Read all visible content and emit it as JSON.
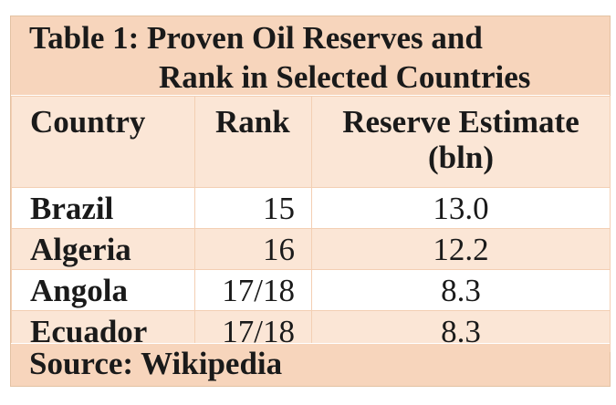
{
  "title": {
    "line1": "Table 1: Proven Oil Reserves and",
    "line2": "Rank in Selected Countries"
  },
  "table": {
    "headers": {
      "country": "Country",
      "rank": "Rank",
      "reserve_line1": "Reserve Estimate",
      "reserve_line2": "(bln)"
    },
    "rows": [
      {
        "country": "Brazil",
        "rank": "15",
        "reserve": "13.0"
      },
      {
        "country": "Algeria",
        "rank": "16",
        "reserve": "12.2"
      },
      {
        "country": "Angola",
        "rank": "17/18",
        "reserve": "8.3"
      },
      {
        "country": "Ecuador",
        "rank": "17/18",
        "reserve": "8.3"
      }
    ]
  },
  "source": "Source: Wikipedia",
  "colors": {
    "header_band": "#f7d5bc",
    "light_band": "#fbe6d6",
    "row_white": "#ffffff",
    "border": "#f3cfb3"
  }
}
